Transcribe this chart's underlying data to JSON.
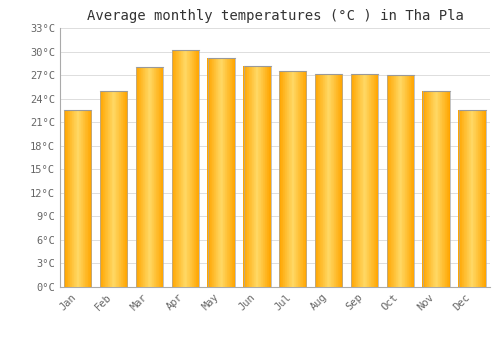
{
  "title": "Average monthly temperatures (°C ) in Tha Pla",
  "months": [
    "Jan",
    "Feb",
    "Mar",
    "Apr",
    "May",
    "Jun",
    "Jul",
    "Aug",
    "Sep",
    "Oct",
    "Nov",
    "Dec"
  ],
  "temperatures": [
    22.5,
    25.0,
    28.0,
    30.2,
    29.2,
    28.2,
    27.5,
    27.2,
    27.2,
    27.0,
    25.0,
    22.5
  ],
  "bar_color_main": "#FFA500",
  "bar_color_highlight": "#FFD966",
  "bar_edge_color": "#888888",
  "background_color": "#ffffff",
  "grid_color": "#dddddd",
  "ytick_step": 3,
  "ymin": 0,
  "ymax": 33,
  "title_fontsize": 10,
  "tick_fontsize": 7.5,
  "tick_font_family": "monospace"
}
